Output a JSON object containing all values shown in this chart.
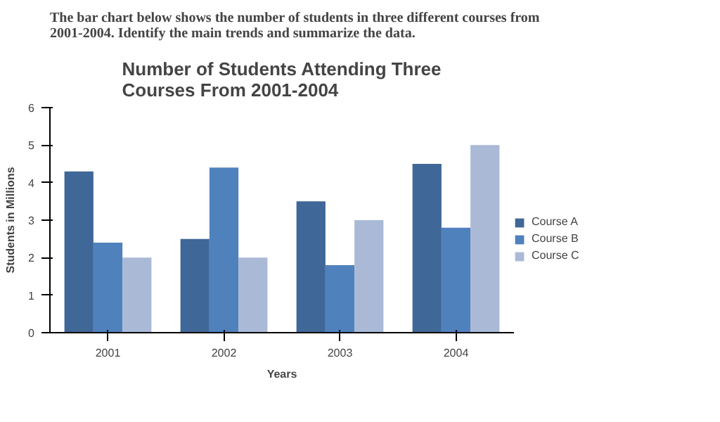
{
  "chart_data": {
    "type": "bar",
    "title": "Number of Students Attending Three Courses From 2001-2004",
    "annotations": [
      "The bar chart below shows the number of students in three different courses from 2001-2004.  Identify the main trends and summarize the data."
    ],
    "xlabel": "Years",
    "ylabel": "Students in Millions",
    "categories": [
      "2001",
      "2002",
      "2003",
      "2004"
    ],
    "series": [
      {
        "name": "Course A",
        "color": "#3f6797",
        "values": [
          4.3,
          2.5,
          3.5,
          4.5
        ]
      },
      {
        "name": "Course B",
        "color": "#4f81bd",
        "values": [
          2.4,
          4.4,
          1.8,
          2.8
        ]
      },
      {
        "name": "Course C",
        "color": "#aab9d6",
        "values": [
          2.0,
          2.0,
          3.0,
          5.0
        ]
      }
    ],
    "ylim": [
      0,
      6
    ],
    "yticks": [
      0,
      1,
      2,
      3,
      4,
      5,
      6
    ],
    "grid": false,
    "legend": "right"
  }
}
